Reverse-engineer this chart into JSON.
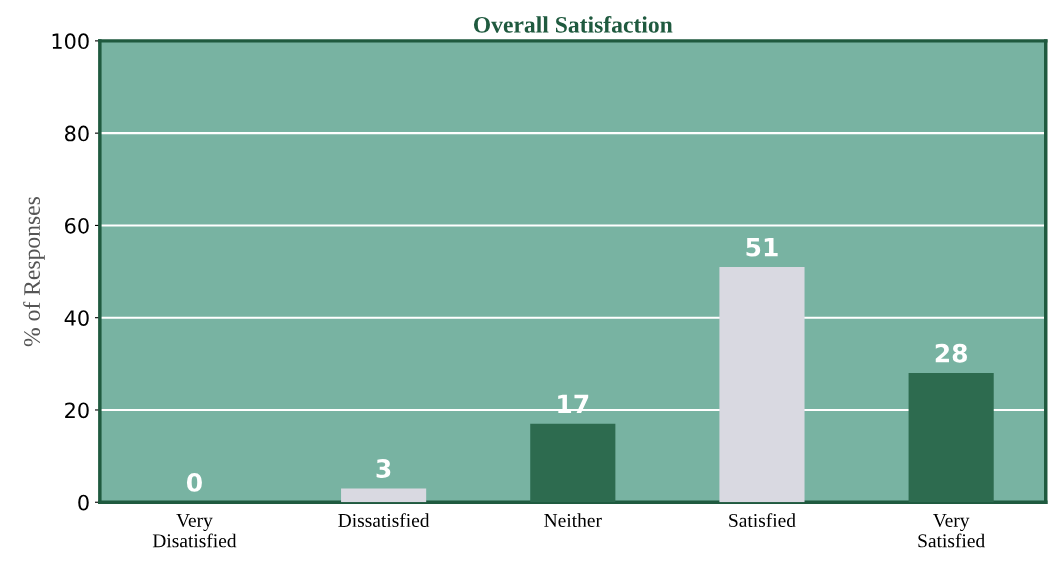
{
  "chart_data": {
    "type": "bar",
    "title": "Overall Satisfaction",
    "ylabel": "% of Responses",
    "categories": [
      "Very\nDisatisfied",
      "Dissatisfied",
      "Neither",
      "Satisfied",
      "Very\nSatisfied"
    ],
    "values": [
      0,
      3,
      17,
      51,
      28
    ],
    "colors": [
      "#d9d9e1",
      "#d9d9e1",
      "#2d6b4f",
      "#d9d9e1",
      "#2d6b4f"
    ],
    "ylim": [
      0,
      100
    ],
    "yticks": [
      0,
      20,
      40,
      60,
      80,
      100
    ],
    "grid": "y",
    "data_labels": true
  }
}
